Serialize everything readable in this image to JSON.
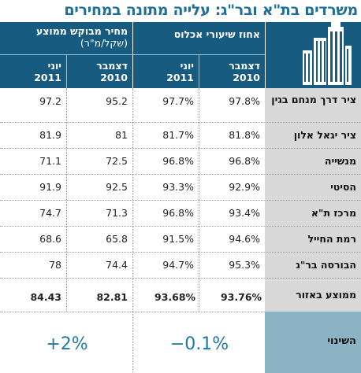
{
  "title": "משרדים בת\"א ובר\"ג: עלייה מתונה במחירים",
  "header": {
    "occupancy_title": "אחוז שיעורי אכלוס",
    "price_title": "מחיר מבוקש ממוצע",
    "price_unit": "(שקל/מ\"ר)",
    "col_dec": "דצמבר",
    "col_jun": "יוני",
    "year_2010": "2010",
    "year_2011": "2011"
  },
  "rows": [
    {
      "label": "ציר דרך מנחם בגין",
      "occ_dec": "97.8%",
      "occ_jun": "97.7%",
      "price_dec": "95.2",
      "price_jun": "97.2"
    },
    {
      "label": "ציר יגאל אלון",
      "occ_dec": "81.8%",
      "occ_jun": "81.7%",
      "price_dec": "81",
      "price_jun": "81.9"
    },
    {
      "label": "מנשייה",
      "occ_dec": "96.8%",
      "occ_jun": "96.8%",
      "price_dec": "72.5",
      "price_jun": "71.1"
    },
    {
      "label": "הסיטי",
      "occ_dec": "92.9%",
      "occ_jun": "93.3%",
      "price_dec": "92.5",
      "price_jun": "91.9"
    },
    {
      "label": "מרכז ת\"א",
      "occ_dec": "93.4%",
      "occ_jun": "96.8%",
      "price_dec": "71.3",
      "price_jun": "74.7"
    },
    {
      "label": "רמת החייל",
      "occ_dec": "94.6%",
      "occ_jun": "91.5%",
      "price_dec": "65.8",
      "price_jun": "68.6"
    },
    {
      "label": "הבורסה בר\"ג",
      "occ_dec": "95.3%",
      "occ_jun": "94.7%",
      "price_dec": "74.4",
      "price_jun": "78"
    }
  ],
  "average": {
    "label": "ממוצע באזור",
    "occ_dec": "93.76%",
    "occ_jun": "93.68%",
    "price_dec": "82.81",
    "price_jun": "84.43"
  },
  "change": {
    "label": "השינוי",
    "occupancy": "−0.1%",
    "price": "+2%"
  },
  "colors": {
    "header_bg": "#175b80",
    "title": "#1f6f96",
    "label_bg": "#d8d8d8",
    "change_bg": "#8bb3c4",
    "change_text": "#1f79a3"
  },
  "icon": "office-buildings-icon",
  "chart_data": {
    "type": "table",
    "title": "משרדים בת\"א ובר\"ג: עלייה מתונה במחירים",
    "columns": [
      "אחוז שיעורי אכלוס — דצמבר 2010",
      "אחוז שיעורי אכלוס — יוני 2011",
      "מחיר מבוקש ממוצע (שקל/מ\"ר) — דצמבר 2010",
      "מחיר מבוקש ממוצע (שקל/מ\"ר) — יוני 2011"
    ],
    "rows": [
      {
        "name": "ציר דרך מנחם בגין",
        "values": [
          97.8,
          97.7,
          95.2,
          97.2
        ]
      },
      {
        "name": "ציר יגאל אלון",
        "values": [
          81.8,
          81.7,
          81,
          81.9
        ]
      },
      {
        "name": "מנשייה",
        "values": [
          96.8,
          96.8,
          72.5,
          71.1
        ]
      },
      {
        "name": "הסיטי",
        "values": [
          92.9,
          93.3,
          92.5,
          91.9
        ]
      },
      {
        "name": "מרכז ת\"א",
        "values": [
          93.4,
          96.8,
          71.3,
          74.7
        ]
      },
      {
        "name": "רמת החייל",
        "values": [
          94.6,
          91.5,
          65.8,
          68.6
        ]
      },
      {
        "name": "הבורסה בר\"ג",
        "values": [
          95.3,
          94.7,
          74.4,
          78
        ]
      },
      {
        "name": "ממוצע באזור",
        "values": [
          93.76,
          93.68,
          82.81,
          84.43
        ]
      }
    ],
    "change": {
      "occupancy": "−0.1%",
      "price": "+2%"
    }
  }
}
